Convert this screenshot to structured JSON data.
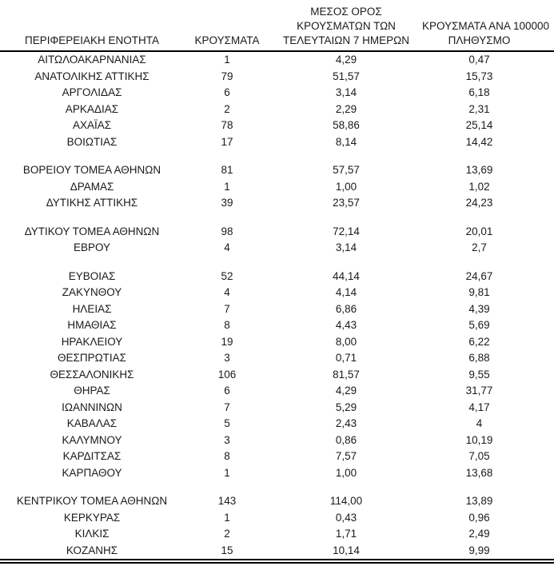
{
  "table": {
    "columns": [
      {
        "id": "region",
        "lines": [
          "ΠΕΡΙΦΕΡΕΙΑΚΗ ΕΝΟΤΗΤΑ"
        ]
      },
      {
        "id": "cases",
        "lines": [
          "ΚΡΟΥΣΜΑΤΑ"
        ]
      },
      {
        "id": "avg7",
        "lines": [
          "ΜΕΣΟΣ ΟΡΟΣ",
          "ΚΡΟΥΣΜΑΤΩΝ ΤΩΝ",
          "ΤΕΛΕΥΤΑΙΩΝ 7 ΗΜΕΡΩΝ"
        ]
      },
      {
        "id": "per100k",
        "lines": [
          "ΚΡΟΥΣΜΑΤΑ ΑΝΑ 100000",
          "ΠΛΗΘΥΣΜΟ"
        ]
      }
    ],
    "groups": [
      {
        "rows": [
          {
            "region": "ΑΙΤΩΛΟΑΚΑΡΝΑΝΙΑΣ",
            "cases": "1",
            "avg7": "4,29",
            "per100k": "0,47"
          },
          {
            "region": "ΑΝΑΤΟΛΙΚΗΣ ΑΤΤΙΚΗΣ",
            "cases": "79",
            "avg7": "51,57",
            "per100k": "15,73"
          },
          {
            "region": "ΑΡΓΟΛΙΔΑΣ",
            "cases": "6",
            "avg7": "3,14",
            "per100k": "6,18"
          },
          {
            "region": "ΑΡΚΑΔΙΑΣ",
            "cases": "2",
            "avg7": "2,29",
            "per100k": "2,31"
          },
          {
            "region": "ΑΧΑΪΑΣ",
            "cases": "78",
            "avg7": "58,86",
            "per100k": "25,14"
          },
          {
            "region": "ΒΟΙΩΤΙΑΣ",
            "cases": "17",
            "avg7": "8,14",
            "per100k": "14,42"
          }
        ]
      },
      {
        "rows": [
          {
            "region": "ΒΟΡΕΙΟΥ ΤΟΜΕΑ ΑΘΗΝΩΝ",
            "cases": "81",
            "avg7": "57,57",
            "per100k": "13,69"
          },
          {
            "region": "ΔΡΑΜΑΣ",
            "cases": "1",
            "avg7": "1,00",
            "per100k": "1,02"
          },
          {
            "region": "ΔΥΤΙΚΗΣ ΑΤΤΙΚΗΣ",
            "cases": "39",
            "avg7": "23,57",
            "per100k": "24,23"
          }
        ]
      },
      {
        "rows": [
          {
            "region": "ΔΥΤΙΚΟΥ ΤΟΜΕΑ ΑΘΗΝΩΝ",
            "cases": "98",
            "avg7": "72,14",
            "per100k": "20,01"
          },
          {
            "region": "ΕΒΡΟΥ",
            "cases": "4",
            "avg7": "3,14",
            "per100k": "2,7"
          }
        ]
      },
      {
        "rows": [
          {
            "region": "ΕΥΒΟΙΑΣ",
            "cases": "52",
            "avg7": "44,14",
            "per100k": "24,67"
          },
          {
            "region": "ΖΑΚΥΝΘΟΥ",
            "cases": "4",
            "avg7": "4,14",
            "per100k": "9,81"
          },
          {
            "region": "ΗΛΕΙΑΣ",
            "cases": "7",
            "avg7": "6,86",
            "per100k": "4,39"
          },
          {
            "region": "ΗΜΑΘΙΑΣ",
            "cases": "8",
            "avg7": "4,43",
            "per100k": "5,69"
          },
          {
            "region": "ΗΡΑΚΛΕΙΟΥ",
            "cases": "19",
            "avg7": "8,00",
            "per100k": "6,22"
          },
          {
            "region": "ΘΕΣΠΡΩΤΙΑΣ",
            "cases": "3",
            "avg7": "0,71",
            "per100k": "6,88"
          },
          {
            "region": "ΘΕΣΣΑΛΟΝΙΚΗΣ",
            "cases": "106",
            "avg7": "81,57",
            "per100k": "9,55"
          },
          {
            "region": "ΘΗΡΑΣ",
            "cases": "6",
            "avg7": "4,29",
            "per100k": "31,77"
          },
          {
            "region": "ΙΩΑΝΝΙΝΩΝ",
            "cases": "7",
            "avg7": "5,29",
            "per100k": "4,17"
          },
          {
            "region": "ΚΑΒΑΛΑΣ",
            "cases": "5",
            "avg7": "2,43",
            "per100k": "4"
          },
          {
            "region": "ΚΑΛΥΜΝΟΥ",
            "cases": "3",
            "avg7": "0,86",
            "per100k": "10,19"
          },
          {
            "region": "ΚΑΡΔΙΤΣΑΣ",
            "cases": "8",
            "avg7": "7,57",
            "per100k": "7,05"
          },
          {
            "region": "ΚΑΡΠΑΘΟΥ",
            "cases": "1",
            "avg7": "1,00",
            "per100k": "13,68"
          }
        ]
      },
      {
        "rows": [
          {
            "region": "ΚΕΝΤΡΙΚΟΥ ΤΟΜΕΑ ΑΘΗΝΩΝ",
            "cases": "143",
            "avg7": "114,00",
            "per100k": "13,89"
          },
          {
            "region": "ΚΕΡΚΥΡΑΣ",
            "cases": "1",
            "avg7": "0,43",
            "per100k": "0,96"
          },
          {
            "region": "ΚΙΛΚΙΣ",
            "cases": "2",
            "avg7": "1,71",
            "per100k": "2,49"
          },
          {
            "region": "ΚΟΖΑΝΗΣ",
            "cases": "15",
            "avg7": "10,14",
            "per100k": "9,99"
          }
        ]
      }
    ],
    "colors": {
      "text": "#1a1a1a",
      "rule": "#000000",
      "background": "#ffffff"
    }
  }
}
